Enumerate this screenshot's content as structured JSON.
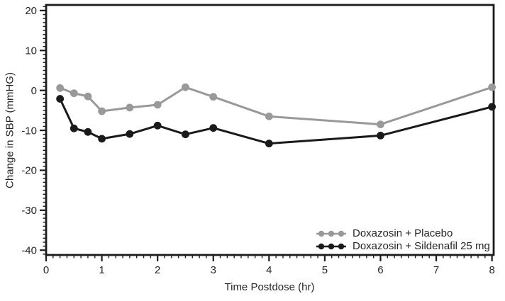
{
  "figure": {
    "background": "#ffffff"
  },
  "chart_data": {
    "type": "line",
    "title": "",
    "xlabel": "Time Postdose (hr)",
    "ylabel": "Change in SBP (mmHG)",
    "x": [
      0.25,
      0.5,
      0.75,
      1,
      1.5,
      2,
      2.5,
      3,
      4,
      6,
      8
    ],
    "series": [
      {
        "name": "Doxazosin + Placebo",
        "color": "#999999",
        "values": [
          0.6,
          -0.7,
          -1.5,
          -5.2,
          -4.3,
          -3.6,
          0.8,
          -1.6,
          -6.5,
          -8.5,
          0.8
        ]
      },
      {
        "name": "Doxazosin + Sildenafil 25 mg",
        "color": "#1a1a1a",
        "values": [
          -2.1,
          -9.5,
          -10.4,
          -12.1,
          -10.9,
          -8.8,
          -11.0,
          -9.4,
          -13.3,
          -11.3,
          -4.1
        ]
      }
    ],
    "xlim": [
      0,
      8.03
    ],
    "ylim": [
      -41.2,
      21.4
    ],
    "x_major_ticks": [
      0,
      1,
      2,
      3,
      4,
      5,
      6,
      7,
      8
    ],
    "x_minor_step": 0.125,
    "y_major_ticks": [
      20,
      10,
      0,
      -10,
      -20,
      -30,
      -40
    ],
    "y_minor_step": 1,
    "grid": false,
    "legend_position": "inside-bottom-right",
    "marker": "circle",
    "axis_color": "#1c1c1c",
    "text_color": "#262626"
  }
}
